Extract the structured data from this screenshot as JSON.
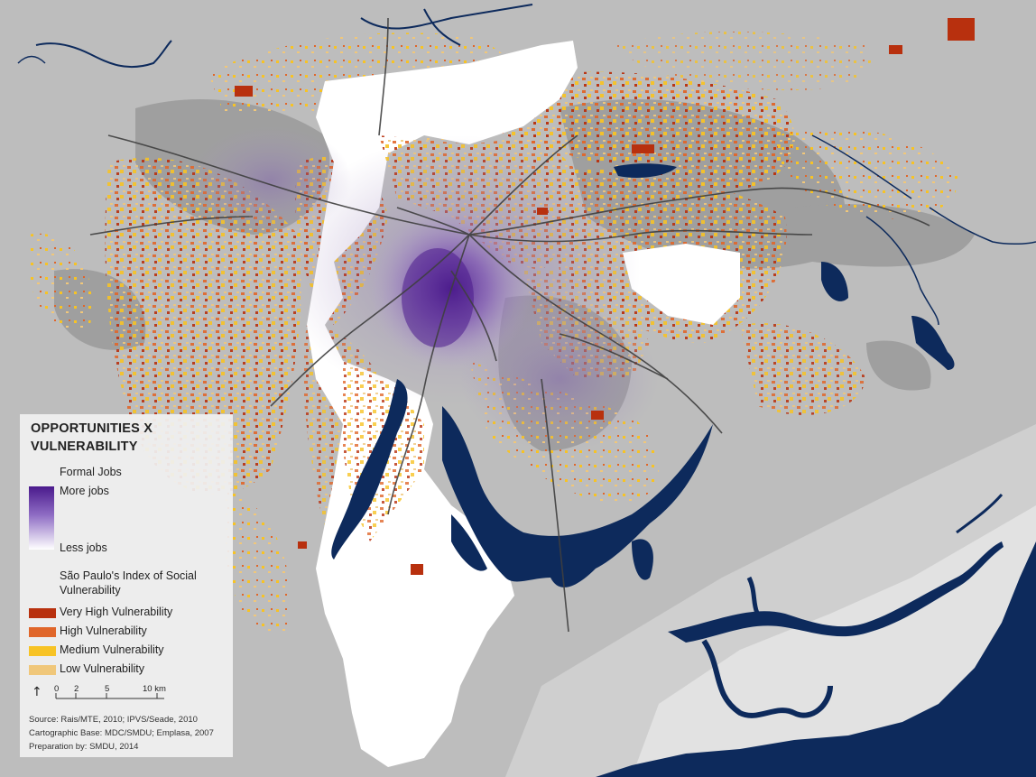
{
  "legend": {
    "title_line1": "OPPORTUNITIES X",
    "title_line2": "VULNERABILITY",
    "jobs_heading": "Formal Jobs",
    "more_jobs": "More jobs",
    "less_jobs": "Less jobs",
    "index_heading_line1": "São Paulo's Index of Social",
    "index_heading_line2": "Vulnerability",
    "categories": [
      {
        "label": "Very High Vulnerability",
        "color": "#b8300e"
      },
      {
        "label": "High Vulnerability",
        "color": "#e0662a"
      },
      {
        "label": "Medium Vulnerability",
        "color": "#f7c325"
      },
      {
        "label": "Low Vulnerability",
        "color": "#f0c77a"
      }
    ],
    "scale": {
      "north_symbol": "↑",
      "ticks": [
        "0",
        "2",
        "5",
        "10 km"
      ]
    },
    "source_lines": [
      "Source: Rais/MTE, 2010; IPVS/Seade, 2010",
      "Cartographic Base: MDC/SMDU; Emplasa, 2007",
      "Preparation by: SMDU, 2014"
    ]
  },
  "colors": {
    "background_land": "#bdbdbd",
    "urban_gray": "#9a9a9a",
    "city_white": "#ffffff",
    "water_navy": "#0d2a5c",
    "jobs_purple": "#5a2a9c",
    "rail_lines": "#444444"
  }
}
